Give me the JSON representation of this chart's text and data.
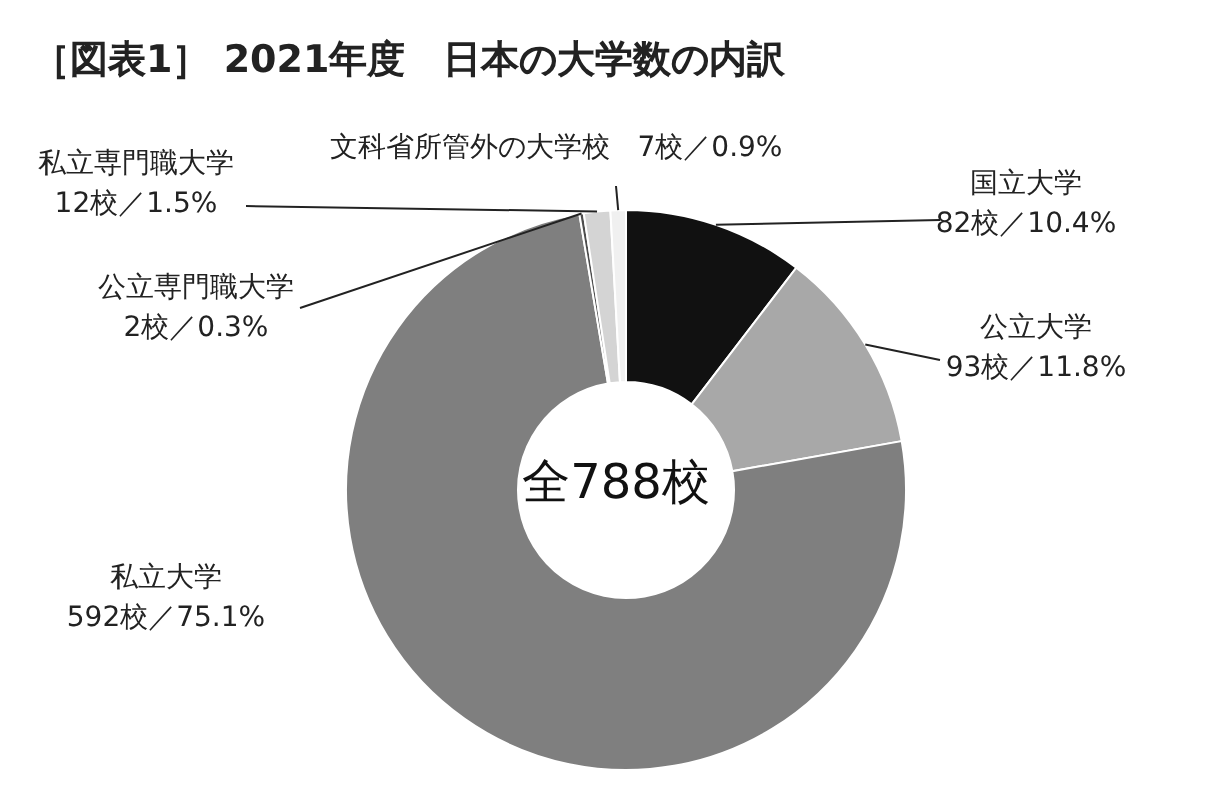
{
  "chart_data": {
    "type": "donut",
    "title": "［図表1］ 2021年度　日本の大学数の内訳",
    "categories": [
      "国立大学",
      "公立大学",
      "私立大学",
      "公立専門職大学",
      "私立専門職大学",
      "文科省所管外の大学校"
    ],
    "values": [
      82,
      93,
      592,
      2,
      12,
      7
    ],
    "colors": [
      "#111111",
      "#a8a8a8",
      "#7f7f7f",
      "#4d4d4d",
      "#d4d4d4",
      "#f0f0f0"
    ],
    "value_labels": [
      "82校／10.4%",
      "93校／11.8%",
      "592校／75.1%",
      "2校／0.3%",
      "12校／1.5%",
      "7校／0.9%"
    ],
    "annotations": [
      "全788校"
    ]
  }
}
